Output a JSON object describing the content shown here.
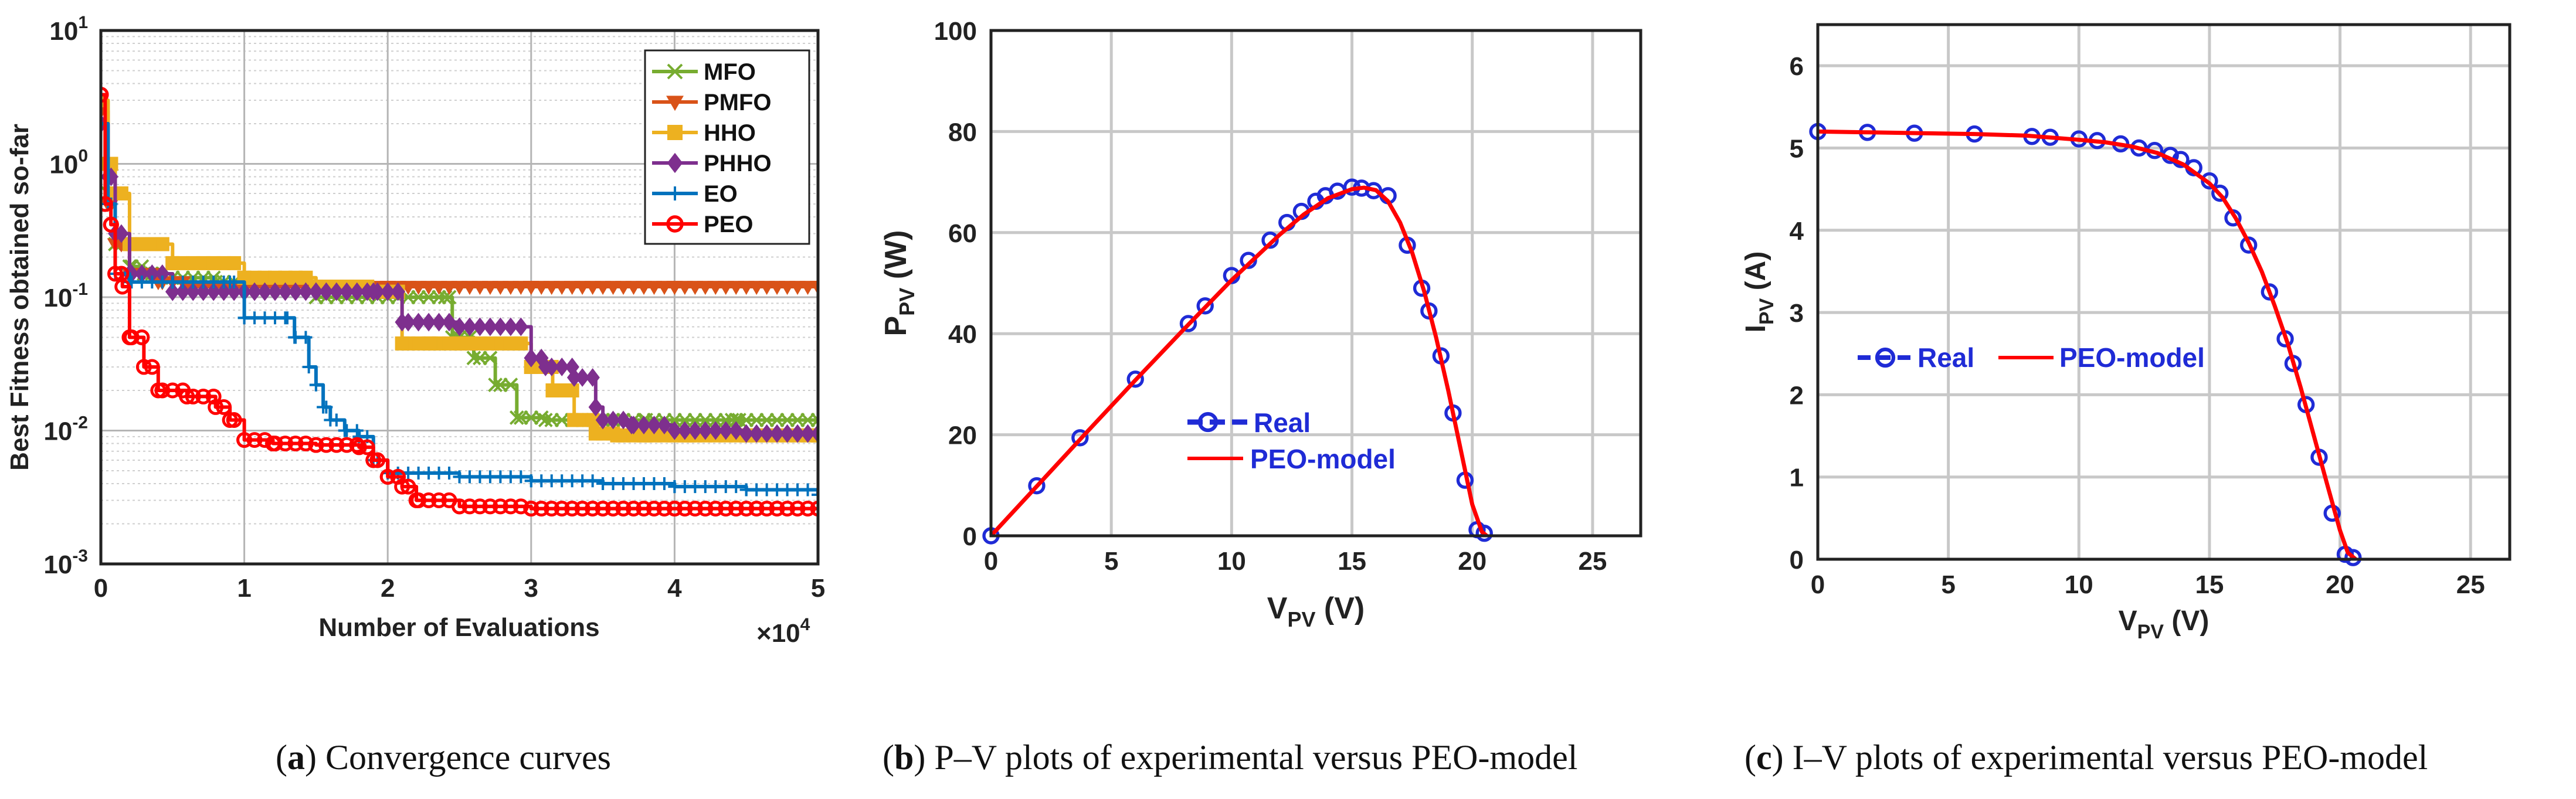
{
  "captions": [
    {
      "letter": "a",
      "text": "Convergence curves"
    },
    {
      "letter": "b",
      "text": "P–V plots of experimental versus PEO-model"
    },
    {
      "letter": "c",
      "text": "I–V plots of experimental versus PEO-model"
    }
  ],
  "chart_data": [
    {
      "type": "line",
      "title": "",
      "xlabel": "Number of Evaluations",
      "ylabel": "Best Fitness obtained so-far",
      "x_multiplier": "×10",
      "x_multiplier_exp": "4",
      "yscale": "log",
      "xlim": [
        0,
        5
      ],
      "ylim": [
        0.001,
        10
      ],
      "xticks": [
        "0",
        "1",
        "2",
        "3",
        "4",
        "5"
      ],
      "ytick_base": "10",
      "yticks_exp": [
        "1",
        "0",
        "-1",
        "-2",
        "-3"
      ],
      "grid": true,
      "legend_position": "top-right",
      "series": [
        {
          "name": "MFO",
          "color": "#77ac30",
          "marker": "x",
          "x": [
            0,
            0.05,
            0.1,
            0.2,
            0.3,
            0.5,
            0.8,
            1.0,
            1.5,
            2.0,
            2.4,
            2.45,
            2.6,
            2.75,
            2.9,
            3.1,
            3.4,
            3.8,
            4.4,
            4.45,
            5.0
          ],
          "y": [
            3.0,
            0.6,
            0.25,
            0.17,
            0.15,
            0.14,
            0.13,
            0.12,
            0.1,
            0.1,
            0.1,
            0.05,
            0.035,
            0.022,
            0.0125,
            0.012,
            0.012,
            0.012,
            0.012,
            0.012,
            0.012
          ]
        },
        {
          "name": "PMFO",
          "color": "#d95319",
          "marker": "triangle-down",
          "x": [
            0,
            0.05,
            0.1,
            0.2,
            0.4,
            0.6,
            1.0,
            1.5,
            2.0,
            3.0,
            4.0,
            5.0
          ],
          "y": [
            2.5,
            0.5,
            0.25,
            0.15,
            0.13,
            0.12,
            0.12,
            0.12,
            0.12,
            0.12,
            0.12,
            0.12
          ]
        },
        {
          "name": "HHO",
          "color": "#edb120",
          "marker": "square",
          "x": [
            0,
            0.05,
            0.1,
            0.2,
            0.5,
            1.0,
            1.5,
            1.9,
            2.1,
            2.3,
            2.5,
            2.9,
            3.0,
            3.15,
            3.3,
            3.45,
            3.6,
            3.8,
            4.1,
            4.5,
            5.0
          ],
          "y": [
            3.0,
            1.0,
            0.6,
            0.25,
            0.18,
            0.14,
            0.12,
            0.11,
            0.045,
            0.045,
            0.045,
            0.045,
            0.03,
            0.02,
            0.012,
            0.0095,
            0.0092,
            0.0092,
            0.0092,
            0.0092,
            0.0092
          ]
        },
        {
          "name": "PHHO",
          "color": "#7e2f8e",
          "marker": "diamond",
          "x": [
            0,
            0.05,
            0.1,
            0.2,
            0.5,
            1.0,
            1.5,
            1.9,
            2.0,
            2.1,
            2.5,
            3.0,
            3.1,
            3.3,
            3.45,
            3.5,
            3.7,
            4.0,
            4.5,
            5.0
          ],
          "y": [
            2.0,
            0.8,
            0.3,
            0.15,
            0.11,
            0.11,
            0.11,
            0.11,
            0.11,
            0.065,
            0.06,
            0.035,
            0.03,
            0.025,
            0.015,
            0.012,
            0.011,
            0.01,
            0.0095,
            0.0095
          ]
        },
        {
          "name": "EO",
          "color": "#0072bd",
          "marker": "plus",
          "x": [
            0,
            0.05,
            0.1,
            0.2,
            0.5,
            0.9,
            1.0,
            1.3,
            1.35,
            1.45,
            1.5,
            1.55,
            1.6,
            1.7,
            1.8,
            1.9,
            2.0,
            2.5,
            3.0,
            3.5,
            4.0,
            4.5,
            5.0
          ],
          "y": [
            2.0,
            0.5,
            0.15,
            0.13,
            0.13,
            0.13,
            0.07,
            0.07,
            0.05,
            0.03,
            0.022,
            0.015,
            0.012,
            0.01,
            0.009,
            0.006,
            0.0048,
            0.0045,
            0.0042,
            0.004,
            0.0038,
            0.0036,
            0.0033
          ]
        },
        {
          "name": "PEO",
          "color": "#ff0000",
          "marker": "circle",
          "x": [
            0,
            0.03,
            0.07,
            0.1,
            0.15,
            0.2,
            0.3,
            0.4,
            0.6,
            0.8,
            0.9,
            1.0,
            1.2,
            1.5,
            1.8,
            1.9,
            2.0,
            2.1,
            2.2,
            2.5,
            3.0,
            4.0,
            5.0
          ],
          "y": [
            3.3,
            0.5,
            0.35,
            0.15,
            0.12,
            0.05,
            0.03,
            0.02,
            0.018,
            0.015,
            0.012,
            0.0085,
            0.008,
            0.0078,
            0.0075,
            0.006,
            0.0045,
            0.0038,
            0.003,
            0.0027,
            0.0026,
            0.0026,
            0.0026
          ]
        }
      ]
    },
    {
      "type": "line",
      "title": "",
      "xlabel": "V",
      "xlabel_sub": "PV",
      "xlabel_unit": "(V)",
      "ylabel": "P",
      "ylabel_sub": "PV",
      "ylabel_unit": "(W)",
      "xlim": [
        0,
        27
      ],
      "ylim": [
        0,
        100
      ],
      "xticks": [
        "0",
        "5",
        "10",
        "15",
        "20",
        "25"
      ],
      "yticks": [
        "0",
        "20",
        "40",
        "60",
        "80",
        "100"
      ],
      "grid": true,
      "legend_position": "center-left",
      "series": [
        {
          "name": "Real",
          "style": "markers",
          "color": "#1f2bd6",
          "marker": "circle",
          "x": [
            0,
            1.9,
            3.7,
            6.0,
            8.2,
            8.9,
            10.0,
            10.7,
            11.6,
            12.3,
            12.9,
            13.5,
            13.9,
            14.4,
            15.0,
            15.4,
            15.9,
            16.5,
            17.3,
            17.9,
            18.2,
            18.7,
            19.2,
            19.7,
            20.2,
            20.5
          ],
          "y": [
            0,
            9.9,
            19.4,
            31.0,
            42.0,
            45.5,
            51.5,
            54.5,
            58.5,
            62.0,
            64.2,
            66.2,
            67.3,
            68.2,
            69.0,
            68.8,
            68.3,
            67.3,
            57.5,
            49.0,
            44.5,
            35.6,
            24.3,
            11.0,
            1.2,
            0.5
          ]
        },
        {
          "name": "PEO-model",
          "style": "line",
          "color": "#ff0000",
          "x": [
            0,
            2,
            4,
            6,
            8,
            10,
            12,
            13,
            14,
            15,
            15.5,
            16,
            16.5,
            17,
            17.5,
            18,
            18.5,
            19,
            19.5,
            20,
            20.4,
            20.6
          ],
          "y": [
            0,
            10.3,
            20.6,
            30.8,
            40.8,
            50.6,
            59.6,
            63.6,
            66.8,
            68.6,
            68.9,
            68.4,
            66.2,
            62.0,
            56.1,
            48.4,
            39.2,
            28.8,
            17.5,
            6.2,
            0.8,
            0
          ]
        }
      ]
    },
    {
      "type": "line",
      "title": "",
      "xlabel": "V",
      "xlabel_sub": "PV",
      "xlabel_unit": "(V)",
      "ylabel": "I",
      "ylabel_sub": "PV",
      "ylabel_unit": "(A)",
      "xlim": [
        0,
        26.5
      ],
      "ylim": [
        0,
        6.5
      ],
      "xticks": [
        "0",
        "5",
        "10",
        "15",
        "20",
        "25"
      ],
      "yticks": [
        "0",
        "1",
        "2",
        "3",
        "4",
        "5",
        "6"
      ],
      "grid": true,
      "legend_position": "center-left",
      "series": [
        {
          "name": "Real",
          "style": "markers",
          "color": "#1f2bd6",
          "marker": "circle",
          "x": [
            0,
            1.9,
            3.7,
            6.0,
            8.2,
            8.9,
            10.0,
            10.7,
            11.6,
            12.3,
            12.9,
            13.5,
            13.9,
            14.4,
            15.0,
            15.4,
            15.9,
            16.5,
            17.3,
            17.9,
            18.2,
            18.7,
            19.2,
            19.7,
            20.2,
            20.5
          ],
          "y": [
            5.2,
            5.19,
            5.18,
            5.17,
            5.14,
            5.13,
            5.11,
            5.09,
            5.05,
            5.0,
            4.97,
            4.91,
            4.86,
            4.76,
            4.6,
            4.45,
            4.15,
            3.82,
            3.25,
            2.68,
            2.38,
            1.88,
            1.24,
            0.56,
            0.06,
            0.02
          ]
        },
        {
          "name": "PEO-model",
          "style": "line",
          "color": "#ff0000",
          "x": [
            0,
            2,
            4,
            6,
            8,
            10,
            11,
            12,
            13,
            14,
            15,
            15.5,
            16,
            16.5,
            17,
            17.5,
            18,
            18.5,
            19,
            19.5,
            20,
            20.3,
            20.6
          ],
          "y": [
            5.2,
            5.19,
            5.18,
            5.17,
            5.15,
            5.1,
            5.07,
            5.02,
            4.94,
            4.8,
            4.57,
            4.4,
            4.15,
            3.85,
            3.5,
            3.08,
            2.62,
            2.08,
            1.5,
            0.92,
            0.35,
            0.08,
            0
          ]
        }
      ]
    }
  ]
}
